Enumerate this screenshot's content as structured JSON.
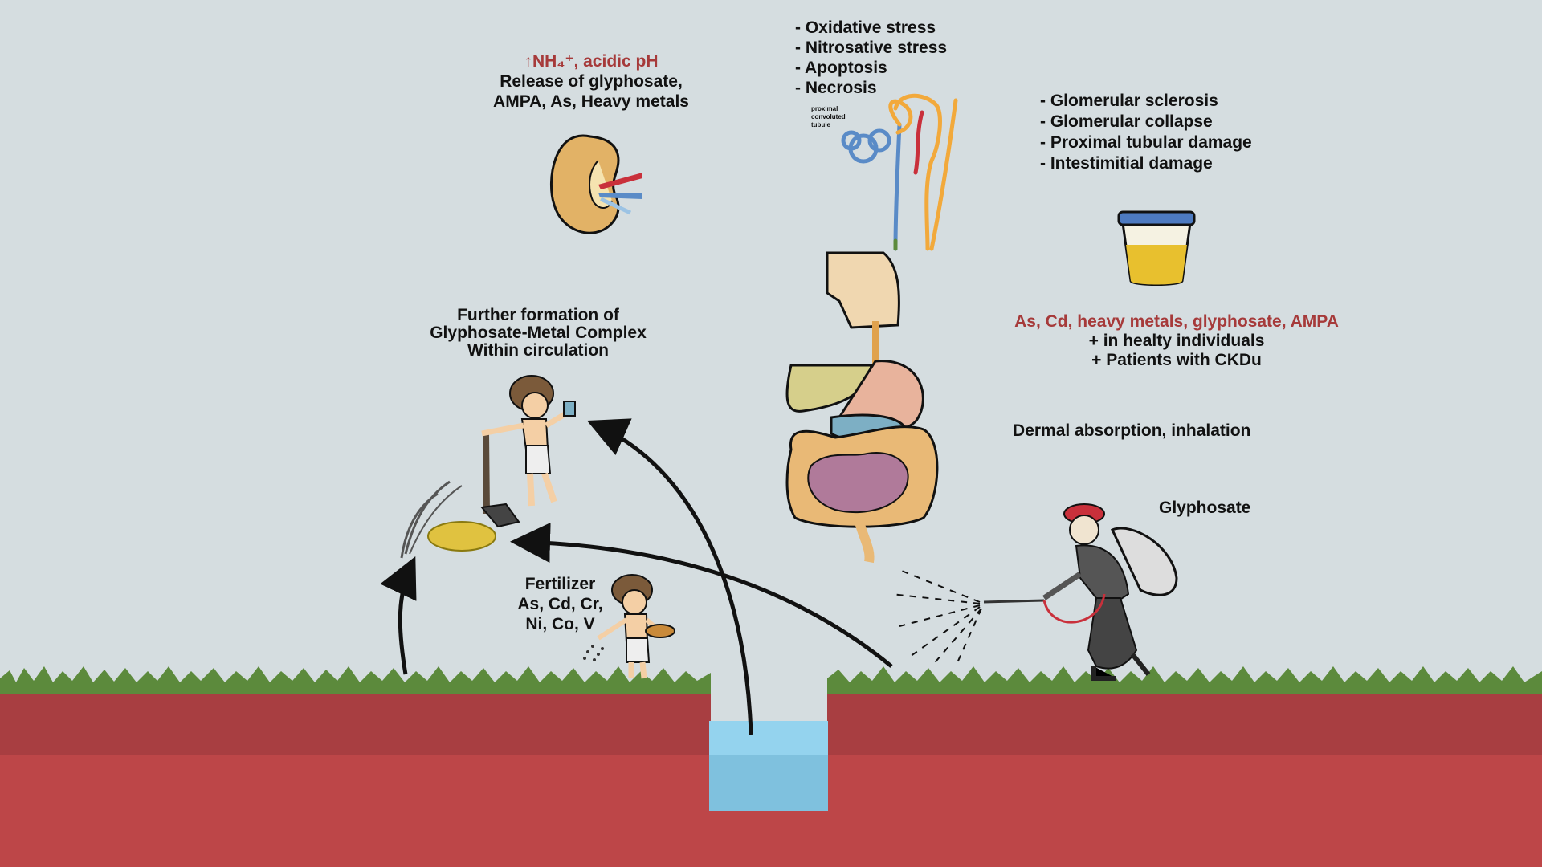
{
  "kidney_block": {
    "highlight_symbol": "↑NH₄⁺",
    "highlight_text": ", acidic pH",
    "lines": [
      "Release of glyphosate,",
      "AMPA, As, Heavy metals"
    ]
  },
  "cell_effects": [
    "- Oxidative stress",
    "- Nitrosative stress",
    "- Apoptosis",
    "- Necrosis"
  ],
  "nephron_label": [
    "proximal",
    "convoluted",
    "tubule"
  ],
  "kidney_damage": [
    "- Glomerular sclerosis",
    "- Glomerular collapse",
    "- Proximal tubular damage",
    "- Intestimitial damage"
  ],
  "circulation_block": [
    "Further formation of",
    "Glyphosate-Metal Complex",
    "Within circulation"
  ],
  "urine_block": {
    "headline": "As, Cd, heavy metals, glyphosate, AMPA",
    "lines": [
      "+ in healty individuals",
      "+ Patients with CKDu"
    ]
  },
  "exposure_route": "Dermal absorption, inhalation",
  "sprayer_label": "Glyphosate",
  "fertilizer_block": [
    "Fertilizer",
    "As, Cd, Cr,",
    "Ni, Co, V"
  ],
  "colors": {
    "background": "#d5dde0",
    "soil_top": "#a83e41",
    "soil_bottom": "#bd4648",
    "grass": "#5c8a3c",
    "water": "#7fc1de",
    "accent_red": "#a63a3a"
  }
}
